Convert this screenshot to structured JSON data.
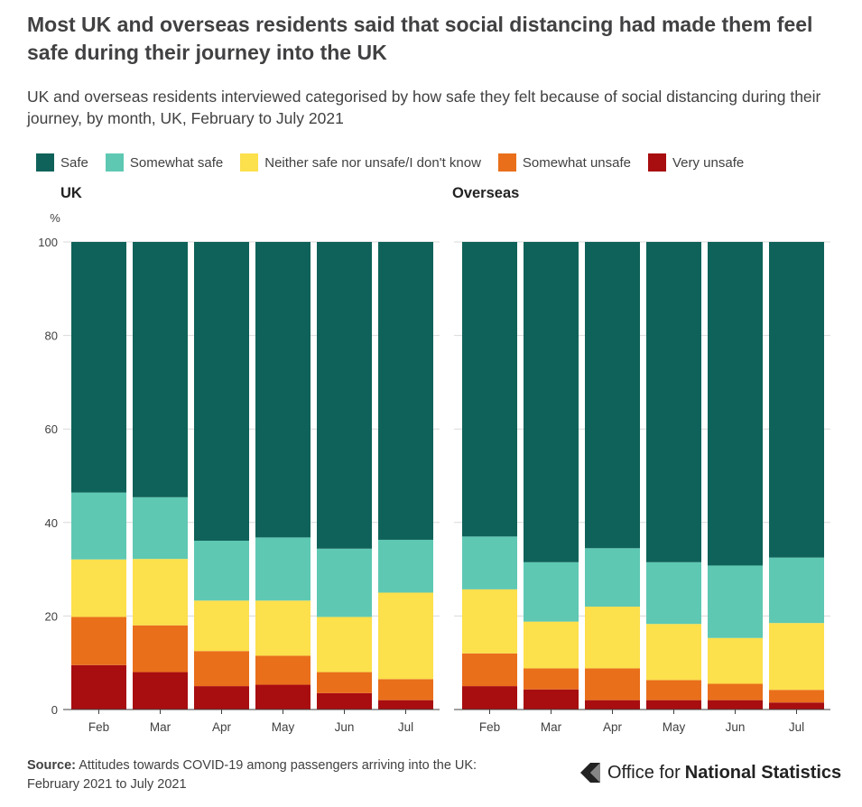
{
  "title": "Most UK and overseas residents said that social distancing had made them feel safe during their journey into the UK",
  "subtitle": "UK and overseas residents interviewed categorised by how safe they felt because of social distancing during their journey, by month, UK, February to July 2021",
  "legend": [
    {
      "label": "Safe",
      "color": "#0f6259"
    },
    {
      "label": "Somewhat safe",
      "color": "#5ec8b3"
    },
    {
      "label": "Neither safe nor unsafe/I don't know",
      "color": "#fce04c"
    },
    {
      "label": "Somewhat unsafe",
      "color": "#e96f1b"
    },
    {
      "label": "Very unsafe",
      "color": "#a80d10"
    }
  ],
  "y_unit": "%",
  "chart_data": [
    {
      "type": "bar",
      "stacked": true,
      "title": "UK",
      "categories": [
        "Feb",
        "Mar",
        "Apr",
        "May",
        "Jun",
        "Jul"
      ],
      "ylim": [
        0,
        100
      ],
      "yticks": [
        0,
        20,
        40,
        60,
        80,
        100
      ],
      "series": [
        {
          "name": "Very unsafe",
          "values": [
            9.5,
            8,
            5,
            5.3,
            3.5,
            2
          ]
        },
        {
          "name": "Somewhat unsafe",
          "values": [
            10.3,
            10,
            7.5,
            6.2,
            4.5,
            4.5
          ]
        },
        {
          "name": "Neither safe nor unsafe/I don't know",
          "values": [
            12.3,
            14.2,
            10.8,
            11.8,
            11.8,
            18.5
          ]
        },
        {
          "name": "Somewhat safe",
          "values": [
            14.3,
            13.2,
            12.8,
            13.5,
            14.6,
            11.3
          ]
        },
        {
          "name": "Safe",
          "values": [
            53.6,
            54.6,
            63.9,
            63.2,
            65.6,
            63.7
          ]
        }
      ]
    },
    {
      "type": "bar",
      "stacked": true,
      "title": "Overseas",
      "categories": [
        "Feb",
        "Mar",
        "Apr",
        "May",
        "Jun",
        "Jul"
      ],
      "ylim": [
        0,
        100
      ],
      "yticks": [
        0,
        20,
        40,
        60,
        80,
        100
      ],
      "series": [
        {
          "name": "Very unsafe",
          "values": [
            5,
            4.3,
            2,
            2,
            2,
            1.5
          ]
        },
        {
          "name": "Somewhat unsafe",
          "values": [
            7,
            4.5,
            6.8,
            4.3,
            3.5,
            2.7
          ]
        },
        {
          "name": "Neither safe nor unsafe/I don't know",
          "values": [
            13.7,
            10,
            13.2,
            12,
            9.8,
            14.3
          ]
        },
        {
          "name": "Somewhat safe",
          "values": [
            11.3,
            12.7,
            12.5,
            13.2,
            15.5,
            14
          ]
        },
        {
          "name": "Safe",
          "values": [
            63,
            68.5,
            65.5,
            68.5,
            69.2,
            67.5
          ]
        }
      ]
    }
  ],
  "footer": {
    "source_label": "Source:",
    "source_text": "Attitudes towards COVID-19 among passengers arriving into the UK: February 2021 to July 2021",
    "logo_text_light": "Office for",
    "logo_text_bold": "National Statistics"
  }
}
